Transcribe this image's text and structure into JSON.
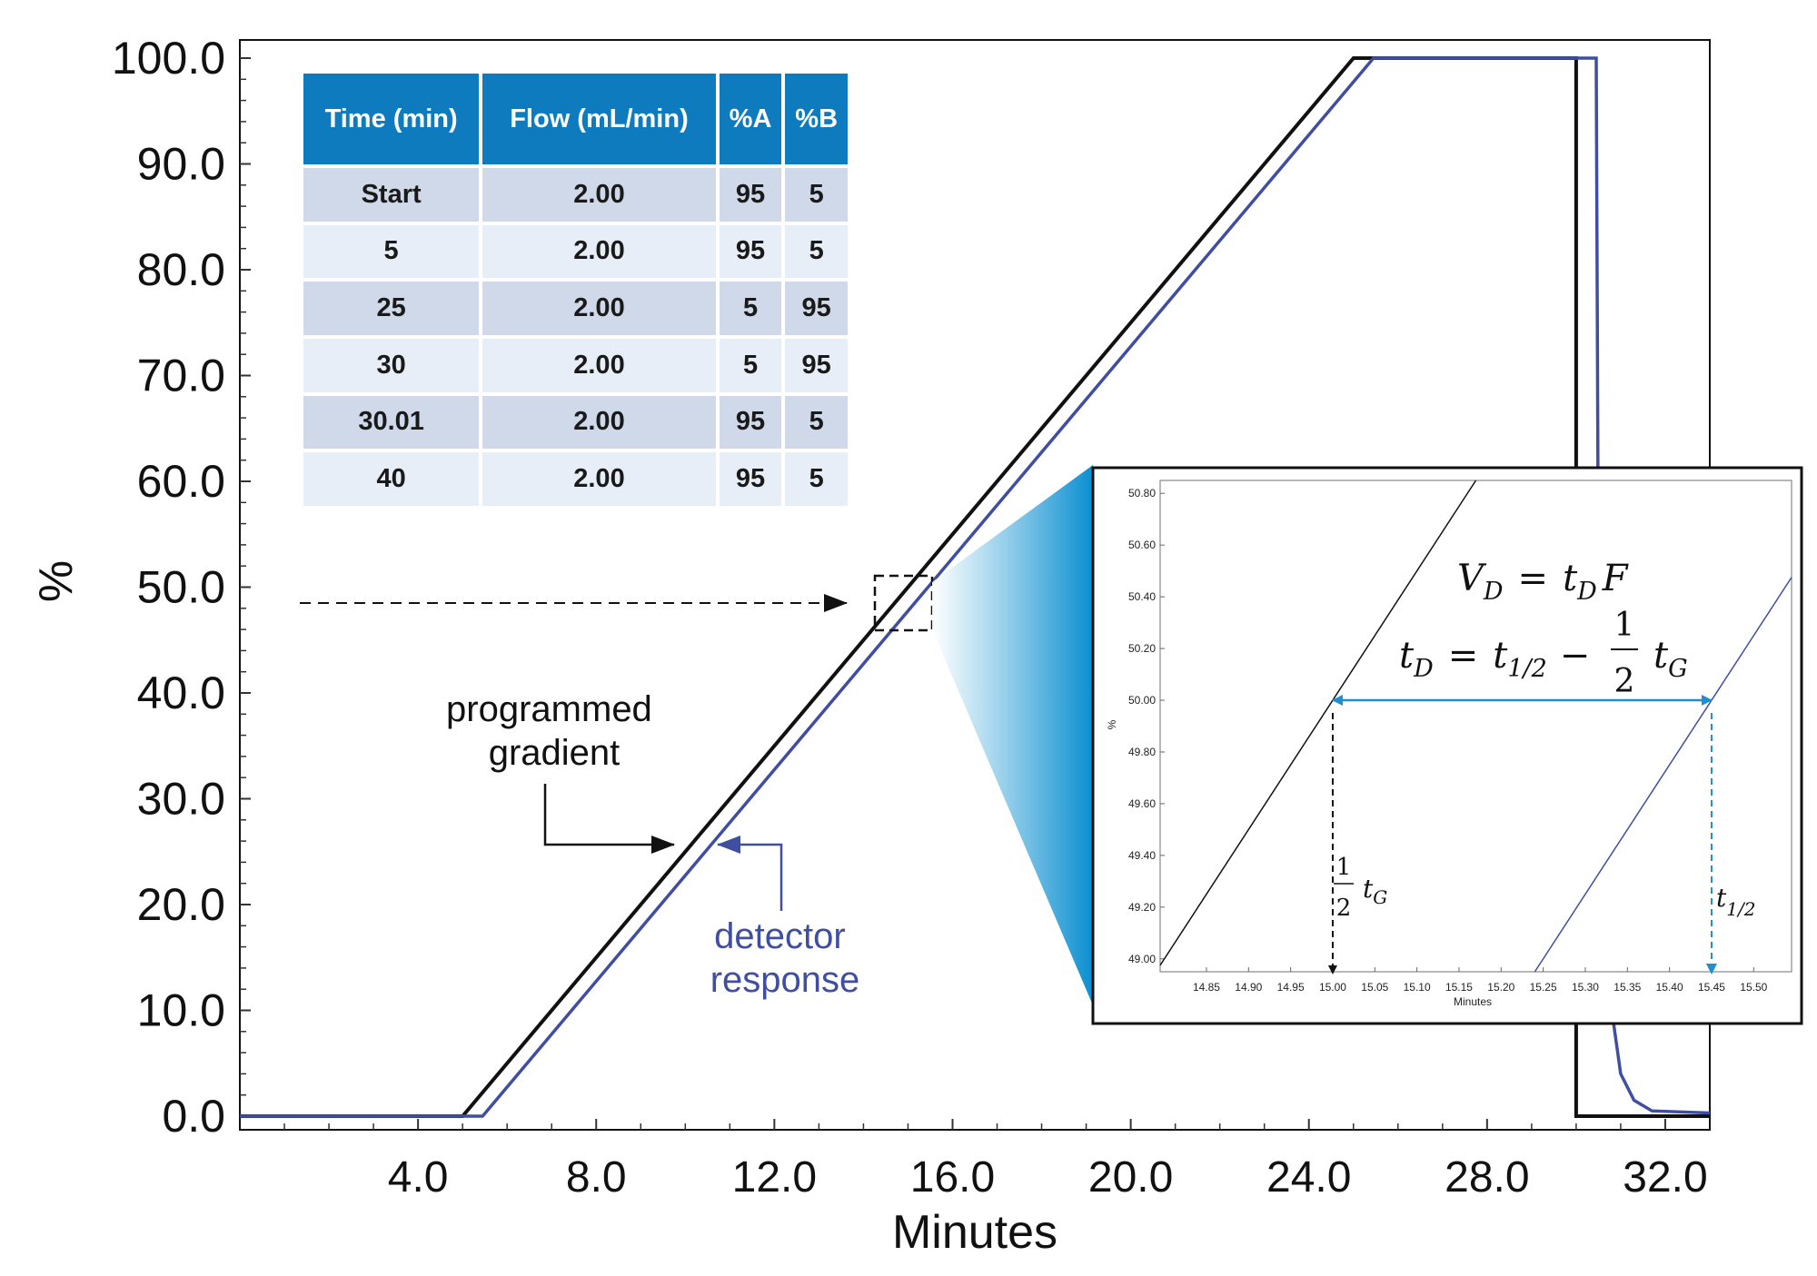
{
  "chart_data": [
    {
      "type": "line",
      "xlabel": "Minutes",
      "ylabel": "%",
      "xlim": [
        0,
        33.0
      ],
      "ylim": [
        0,
        100
      ],
      "x_ticks": [
        "4.0",
        "8.0",
        "12.0",
        "16.0",
        "20.0",
        "24.0",
        "28.0",
        "32.0"
      ],
      "y_ticks": [
        "0.0",
        "10.0",
        "20.0",
        "30.0",
        "40.0",
        "50.0",
        "60.0",
        "70.0",
        "80.0",
        "90.0",
        "100.0"
      ],
      "series": [
        {
          "name": "programmed gradient",
          "color": "#111111",
          "x": [
            0,
            5.0,
            25.0,
            30.0,
            30.0,
            33.0
          ],
          "y": [
            0,
            0,
            100,
            100,
            0,
            0
          ]
        },
        {
          "name": "detector response",
          "color": "#3f4ea0",
          "x": [
            0,
            5.45,
            25.45,
            30.45,
            30.5,
            30.6,
            30.8,
            31.0,
            31.3,
            31.7,
            33.0
          ],
          "y": [
            0,
            0,
            100,
            100,
            50,
            25,
            10,
            4,
            1.5,
            0.5,
            0.3
          ]
        }
      ],
      "annotations": [
        "programmed gradient",
        "detector response"
      ]
    },
    {
      "type": "line",
      "xlabel": "Minutes",
      "ylabel": "%",
      "xlim": [
        14.795,
        15.545
      ],
      "ylim": [
        48.95,
        50.85
      ],
      "x_ticks": [
        "14.85",
        "14.90",
        "14.95",
        "15.00",
        "15.05",
        "15.10",
        "15.15",
        "15.20",
        "15.25",
        "15.30",
        "15.35",
        "15.40",
        "15.45",
        "15.50"
      ],
      "y_ticks": [
        "49.00",
        "49.20",
        "49.40",
        "49.60",
        "49.80",
        "50.00",
        "50.20",
        "50.40",
        "50.60",
        "50.80"
      ],
      "series": [
        {
          "color": "#111111",
          "x": [
            14.795,
            15.19
          ],
          "y": [
            48.975,
            50.95
          ]
        },
        {
          "color": "#3f4ea0",
          "x": [
            15.22,
            15.545
          ],
          "y": [
            48.85,
            50.475
          ]
        }
      ],
      "markers": {
        "half_tG_x": 15.0,
        "t_half_x": 15.45,
        "y": 50.0
      }
    }
  ],
  "table": {
    "headers": [
      "Time (min)",
      "Flow (mL/min)",
      "%A",
      "%B"
    ],
    "rows": [
      [
        "Start",
        "2.00",
        "95",
        "5"
      ],
      [
        "5",
        "2.00",
        "95",
        "5"
      ],
      [
        "25",
        "2.00",
        "5",
        "95"
      ],
      [
        "30",
        "2.00",
        "5",
        "95"
      ],
      [
        "30.01",
        "2.00",
        "95",
        "5"
      ],
      [
        "40",
        "2.00",
        "95",
        "5"
      ]
    ]
  },
  "annotations": {
    "programmed": [
      "programmed",
      "gradient"
    ],
    "detector": [
      "detector",
      "response"
    ]
  },
  "equations": {
    "vd": {
      "lhs": "V",
      "lhs_sub": "D",
      "eq": "=",
      "rhs": "t",
      "rhs_sub": "D",
      "rhs2": "F"
    },
    "td": {
      "lhs": "t",
      "lhs_sub": "D",
      "eq": "=",
      "rhs": "t",
      "rhs_sub": "1/2",
      "minus": "−",
      "num": "1",
      "den": "2",
      "t": "t",
      "t_sub": "G"
    },
    "half_tg": {
      "num": "1",
      "den": "2",
      "t": "t",
      "t_sub": "G"
    },
    "t_half": {
      "t": "t",
      "t_sub": "1/2"
    }
  },
  "colors": {
    "programmed": "#111111",
    "detector": "#3f4ea0",
    "accent": "#0f7bbf",
    "marker_blue": "#1f8fcf",
    "table_header": "#0f7bbf",
    "table_row_dark": "#cfd9e9",
    "table_row_light": "#e8eef7"
  }
}
